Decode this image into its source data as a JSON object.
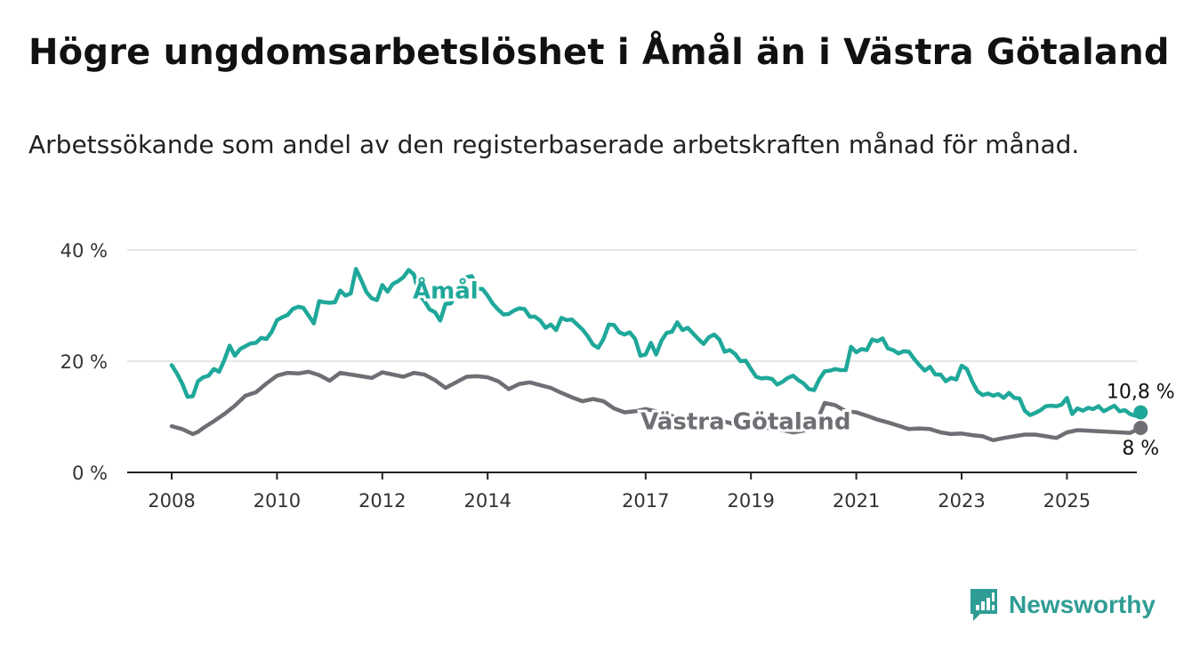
{
  "header": {
    "title": "Högre ungdomsarbetslöshet i Åmål än i Västra Götaland",
    "subtitle": "Arbetssökande som andel av den registerbaserade arbetskraften månad för månad."
  },
  "brand": {
    "name": "Newsworthy",
    "icon": "newsworthy-logo-icon",
    "color": "#2f9d94"
  },
  "chart_data": {
    "type": "line",
    "xlim": [
      2008,
      2025.8
    ],
    "ylim": [
      0,
      40
    ],
    "y_ticks": [
      {
        "value": 0,
        "label": "0 %"
      },
      {
        "value": 20,
        "label": "20 %"
      },
      {
        "value": 40,
        "label": "40 %"
      }
    ],
    "x_ticks": [
      {
        "value": 2008,
        "label": "2008"
      },
      {
        "value": 2010,
        "label": "2010"
      },
      {
        "value": 2012,
        "label": "2012"
      },
      {
        "value": 2014,
        "label": "2014"
      },
      {
        "value": 2017,
        "label": "2017"
      },
      {
        "value": 2019,
        "label": "2019"
      },
      {
        "value": 2021,
        "label": "2021"
      },
      {
        "value": 2023,
        "label": "2023"
      },
      {
        "value": 2025,
        "label": "2025"
      }
    ],
    "grid": true,
    "series": [
      {
        "name": "Åmål",
        "color": "#1fa89a",
        "end_label": "10,8 %",
        "label_at": [
          2013.2,
          31.3
        ],
        "points": [
          [
            2008.0,
            19.3
          ],
          [
            2008.1,
            17.8
          ],
          [
            2008.2,
            16.0
          ],
          [
            2008.3,
            13.6
          ],
          [
            2008.4,
            13.7
          ],
          [
            2008.5,
            16.4
          ],
          [
            2008.6,
            17.1
          ],
          [
            2008.7,
            17.4
          ],
          [
            2008.8,
            18.6
          ],
          [
            2008.9,
            18.1
          ],
          [
            2009.0,
            20.2
          ],
          [
            2009.1,
            22.8
          ],
          [
            2009.2,
            21.0
          ],
          [
            2009.3,
            22.2
          ],
          [
            2009.4,
            22.7
          ],
          [
            2009.5,
            23.2
          ],
          [
            2009.6,
            23.3
          ],
          [
            2009.7,
            24.2
          ],
          [
            2009.8,
            24.0
          ],
          [
            2009.9,
            25.3
          ],
          [
            2010.0,
            27.4
          ],
          [
            2010.1,
            27.9
          ],
          [
            2010.2,
            28.3
          ],
          [
            2010.3,
            29.4
          ],
          [
            2010.4,
            29.8
          ],
          [
            2010.5,
            29.6
          ],
          [
            2010.6,
            28.2
          ],
          [
            2010.7,
            26.8
          ],
          [
            2010.8,
            30.8
          ],
          [
            2010.9,
            30.6
          ],
          [
            2011.0,
            30.5
          ],
          [
            2011.1,
            30.6
          ],
          [
            2011.2,
            32.7
          ],
          [
            2011.3,
            31.8
          ],
          [
            2011.4,
            32.2
          ],
          [
            2011.5,
            36.6
          ],
          [
            2011.6,
            34.6
          ],
          [
            2011.7,
            32.4
          ],
          [
            2011.8,
            31.3
          ],
          [
            2011.9,
            31.0
          ],
          [
            2012.0,
            33.7
          ],
          [
            2012.1,
            32.5
          ],
          [
            2012.2,
            33.9
          ],
          [
            2012.3,
            34.4
          ],
          [
            2012.4,
            35.1
          ],
          [
            2012.5,
            36.4
          ],
          [
            2012.6,
            35.6
          ],
          [
            2012.7,
            32.0
          ],
          [
            2012.8,
            30.8
          ],
          [
            2012.9,
            29.3
          ],
          [
            2013.0,
            28.8
          ],
          [
            2013.1,
            27.3
          ],
          [
            2013.2,
            30.3
          ],
          [
            2013.3,
            30.4
          ],
          [
            2013.4,
            31.9
          ],
          [
            2013.5,
            34.6
          ],
          [
            2013.6,
            35.1
          ],
          [
            2013.7,
            35.3
          ],
          [
            2013.8,
            33.0
          ],
          [
            2013.9,
            33.0
          ],
          [
            2014.0,
            31.8
          ],
          [
            2014.1,
            30.3
          ],
          [
            2014.2,
            29.3
          ],
          [
            2014.3,
            28.4
          ],
          [
            2014.4,
            28.5
          ],
          [
            2014.5,
            29.1
          ],
          [
            2014.6,
            29.5
          ],
          [
            2014.7,
            29.4
          ],
          [
            2014.8,
            28.0
          ],
          [
            2014.9,
            28.0
          ],
          [
            2015.0,
            27.3
          ],
          [
            2015.1,
            26.0
          ],
          [
            2015.2,
            26.6
          ],
          [
            2015.3,
            25.6
          ],
          [
            2015.4,
            27.8
          ],
          [
            2015.5,
            27.4
          ],
          [
            2015.6,
            27.5
          ],
          [
            2015.7,
            26.6
          ],
          [
            2015.8,
            25.7
          ],
          [
            2015.9,
            24.5
          ],
          [
            2016.0,
            23.0
          ],
          [
            2016.1,
            22.4
          ],
          [
            2016.2,
            24.0
          ],
          [
            2016.3,
            26.6
          ],
          [
            2016.4,
            26.5
          ],
          [
            2016.5,
            25.2
          ],
          [
            2016.6,
            24.8
          ],
          [
            2016.7,
            25.2
          ],
          [
            2016.8,
            24.0
          ],
          [
            2016.9,
            21.0
          ],
          [
            2017.0,
            21.2
          ],
          [
            2017.1,
            23.3
          ],
          [
            2017.2,
            21.2
          ],
          [
            2017.3,
            23.7
          ],
          [
            2017.4,
            25.1
          ],
          [
            2017.5,
            25.3
          ],
          [
            2017.6,
            27.0
          ],
          [
            2017.7,
            25.6
          ],
          [
            2017.8,
            26.0
          ],
          [
            2017.9,
            25.0
          ],
          [
            2018.0,
            24.0
          ],
          [
            2018.1,
            23.1
          ],
          [
            2018.2,
            24.3
          ],
          [
            2018.3,
            24.8
          ],
          [
            2018.4,
            23.9
          ],
          [
            2018.5,
            21.7
          ],
          [
            2018.6,
            22.0
          ],
          [
            2018.7,
            21.3
          ],
          [
            2018.8,
            20.0
          ],
          [
            2018.9,
            20.1
          ],
          [
            2019.0,
            18.6
          ],
          [
            2019.1,
            17.2
          ],
          [
            2019.2,
            16.9
          ],
          [
            2019.3,
            17.0
          ],
          [
            2019.4,
            16.8
          ],
          [
            2019.5,
            15.8
          ],
          [
            2019.6,
            16.3
          ],
          [
            2019.7,
            17.0
          ],
          [
            2019.8,
            17.4
          ],
          [
            2019.9,
            16.6
          ],
          [
            2020.0,
            16.0
          ],
          [
            2020.1,
            15.0
          ],
          [
            2020.2,
            14.8
          ],
          [
            2020.3,
            16.8
          ],
          [
            2020.4,
            18.2
          ],
          [
            2020.5,
            18.3
          ],
          [
            2020.6,
            18.6
          ],
          [
            2020.7,
            18.4
          ],
          [
            2020.8,
            18.4
          ],
          [
            2020.9,
            22.6
          ],
          [
            2021.0,
            21.6
          ],
          [
            2021.1,
            22.2
          ],
          [
            2021.2,
            22.0
          ],
          [
            2021.3,
            23.9
          ],
          [
            2021.4,
            23.6
          ],
          [
            2021.5,
            24.1
          ],
          [
            2021.6,
            22.3
          ],
          [
            2021.7,
            22.0
          ],
          [
            2021.8,
            21.4
          ],
          [
            2021.9,
            21.8
          ],
          [
            2022.0,
            21.7
          ],
          [
            2022.1,
            20.4
          ],
          [
            2022.2,
            19.3
          ],
          [
            2022.3,
            18.3
          ],
          [
            2022.4,
            19.0
          ],
          [
            2022.5,
            17.6
          ],
          [
            2022.6,
            17.6
          ],
          [
            2022.7,
            16.4
          ],
          [
            2022.8,
            17.0
          ],
          [
            2022.9,
            16.7
          ],
          [
            2023.0,
            19.2
          ],
          [
            2023.1,
            18.6
          ],
          [
            2023.2,
            16.4
          ],
          [
            2023.3,
            14.6
          ],
          [
            2023.4,
            13.9
          ],
          [
            2023.5,
            14.2
          ],
          [
            2023.6,
            13.8
          ],
          [
            2023.7,
            14.1
          ],
          [
            2023.8,
            13.4
          ],
          [
            2023.9,
            14.3
          ],
          [
            2024.0,
            13.4
          ],
          [
            2024.1,
            13.3
          ],
          [
            2024.2,
            11.1
          ],
          [
            2024.3,
            10.3
          ],
          [
            2024.4,
            10.7
          ],
          [
            2024.5,
            11.2
          ],
          [
            2024.6,
            11.9
          ],
          [
            2024.7,
            12.0
          ],
          [
            2024.8,
            11.9
          ],
          [
            2024.9,
            12.2
          ],
          [
            2025.0,
            13.4
          ],
          [
            2025.1,
            10.5
          ],
          [
            2025.2,
            11.5
          ],
          [
            2025.3,
            11.1
          ],
          [
            2025.4,
            11.6
          ],
          [
            2025.5,
            11.4
          ],
          [
            2025.6,
            11.9
          ],
          [
            2025.7,
            11.0
          ],
          [
            2025.8,
            11.5
          ],
          [
            2025.9,
            12.0
          ],
          [
            2026.0,
            11.0
          ],
          [
            2026.1,
            11.2
          ],
          [
            2026.2,
            10.5
          ],
          [
            2026.3,
            10.2
          ],
          [
            2026.4,
            10.8
          ]
        ]
      },
      {
        "name": "Västra Götaland",
        "color": "#6e6e74",
        "end_label": "8 %",
        "label_at": [
          2018.9,
          7.8
        ],
        "points": [
          [
            2008.0,
            8.3
          ],
          [
            2008.2,
            7.8
          ],
          [
            2008.4,
            6.9
          ],
          [
            2008.5,
            7.3
          ],
          [
            2008.6,
            8.0
          ],
          [
            2008.8,
            9.2
          ],
          [
            2009.0,
            10.5
          ],
          [
            2009.2,
            12.0
          ],
          [
            2009.4,
            13.8
          ],
          [
            2009.6,
            14.4
          ],
          [
            2009.8,
            16.0
          ],
          [
            2010.0,
            17.4
          ],
          [
            2010.2,
            17.9
          ],
          [
            2010.4,
            17.8
          ],
          [
            2010.6,
            18.1
          ],
          [
            2010.8,
            17.5
          ],
          [
            2011.0,
            16.5
          ],
          [
            2011.2,
            17.9
          ],
          [
            2011.4,
            17.6
          ],
          [
            2011.6,
            17.3
          ],
          [
            2011.8,
            17.0
          ],
          [
            2012.0,
            18.0
          ],
          [
            2012.2,
            17.6
          ],
          [
            2012.4,
            17.2
          ],
          [
            2012.6,
            17.9
          ],
          [
            2012.8,
            17.6
          ],
          [
            2013.0,
            16.6
          ],
          [
            2013.2,
            15.2
          ],
          [
            2013.4,
            16.2
          ],
          [
            2013.6,
            17.2
          ],
          [
            2013.8,
            17.3
          ],
          [
            2014.0,
            17.1
          ],
          [
            2014.2,
            16.4
          ],
          [
            2014.4,
            15.0
          ],
          [
            2014.6,
            15.9
          ],
          [
            2014.8,
            16.2
          ],
          [
            2015.0,
            15.7
          ],
          [
            2015.2,
            15.2
          ],
          [
            2015.4,
            14.3
          ],
          [
            2015.6,
            13.5
          ],
          [
            2015.8,
            12.8
          ],
          [
            2016.0,
            13.2
          ],
          [
            2016.2,
            12.8
          ],
          [
            2016.4,
            11.5
          ],
          [
            2016.6,
            10.8
          ],
          [
            2016.8,
            11.0
          ],
          [
            2017.0,
            11.4
          ],
          [
            2017.2,
            11.0
          ],
          [
            2017.4,
            10.5
          ],
          [
            2017.6,
            9.8
          ],
          [
            2017.8,
            9.9
          ],
          [
            2018.0,
            10.0
          ],
          [
            2018.2,
            9.8
          ],
          [
            2018.4,
            9.4
          ],
          [
            2018.6,
            8.9
          ],
          [
            2018.8,
            8.2
          ],
          [
            2019.0,
            8.5
          ],
          [
            2019.2,
            8.2
          ],
          [
            2019.4,
            7.9
          ],
          [
            2019.6,
            7.6
          ],
          [
            2019.8,
            7.2
          ],
          [
            2020.0,
            7.5
          ],
          [
            2020.2,
            8.0
          ],
          [
            2020.4,
            12.5
          ],
          [
            2020.6,
            12.1
          ],
          [
            2020.8,
            11.0
          ],
          [
            2021.0,
            10.8
          ],
          [
            2021.2,
            10.2
          ],
          [
            2021.4,
            9.5
          ],
          [
            2021.6,
            9.0
          ],
          [
            2021.8,
            8.4
          ],
          [
            2022.0,
            7.8
          ],
          [
            2022.2,
            7.9
          ],
          [
            2022.4,
            7.8
          ],
          [
            2022.6,
            7.2
          ],
          [
            2022.8,
            6.9
          ],
          [
            2023.0,
            7.0
          ],
          [
            2023.2,
            6.7
          ],
          [
            2023.4,
            6.5
          ],
          [
            2023.6,
            5.8
          ],
          [
            2023.8,
            6.2
          ],
          [
            2024.0,
            6.5
          ],
          [
            2024.2,
            6.8
          ],
          [
            2024.4,
            6.8
          ],
          [
            2024.6,
            6.5
          ],
          [
            2024.8,
            6.2
          ],
          [
            2025.0,
            7.2
          ],
          [
            2025.2,
            7.6
          ],
          [
            2025.4,
            7.5
          ],
          [
            2025.6,
            7.4
          ],
          [
            2025.8,
            7.3
          ],
          [
            2026.0,
            7.2
          ],
          [
            2026.2,
            7.1
          ],
          [
            2026.4,
            8.0
          ]
        ]
      }
    ]
  }
}
